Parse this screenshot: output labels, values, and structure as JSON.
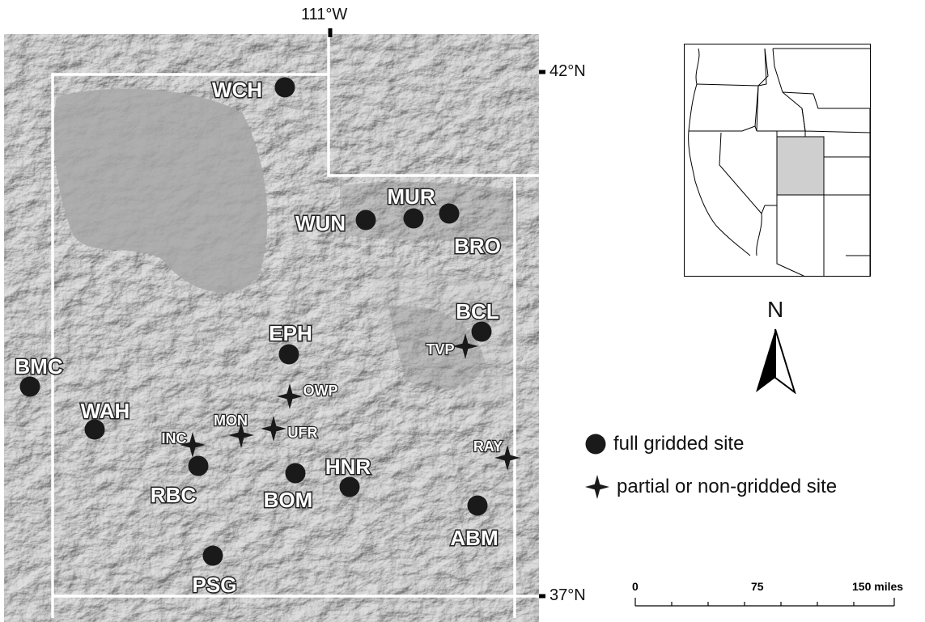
{
  "coords": {
    "lon_top": "111°W",
    "lat_top": "42°N",
    "lat_bottom": "37°N"
  },
  "sites": [
    {
      "code": "WCH",
      "type": "full"
    },
    {
      "code": "WUN",
      "type": "full"
    },
    {
      "code": "MUR",
      "type": "full"
    },
    {
      "code": "BRO",
      "type": "full"
    },
    {
      "code": "BCL",
      "type": "full"
    },
    {
      "code": "TVP",
      "type": "partial"
    },
    {
      "code": "EPH",
      "type": "full"
    },
    {
      "code": "BMC",
      "type": "full"
    },
    {
      "code": "OWP",
      "type": "partial"
    },
    {
      "code": "WAH",
      "type": "full"
    },
    {
      "code": "MON",
      "type": "partial"
    },
    {
      "code": "UFR",
      "type": "partial"
    },
    {
      "code": "INC",
      "type": "partial"
    },
    {
      "code": "RAY",
      "type": "partial"
    },
    {
      "code": "RBC",
      "type": "full"
    },
    {
      "code": "BOM",
      "type": "full"
    },
    {
      "code": "HNR",
      "type": "full"
    },
    {
      "code": "ABM",
      "type": "full"
    },
    {
      "code": "PSG",
      "type": "full"
    }
  ],
  "legend": {
    "full": "full gridded site",
    "partial": "partial or non-gridded site"
  },
  "north_label": "N",
  "scale": {
    "labels": [
      "0",
      "75",
      "150 miles"
    ]
  },
  "colors": {
    "relief_base": "#a9a9a9",
    "border": "#ffffff",
    "marker": "#1a1a1a",
    "inset_highlight": "#cfcfcf"
  }
}
